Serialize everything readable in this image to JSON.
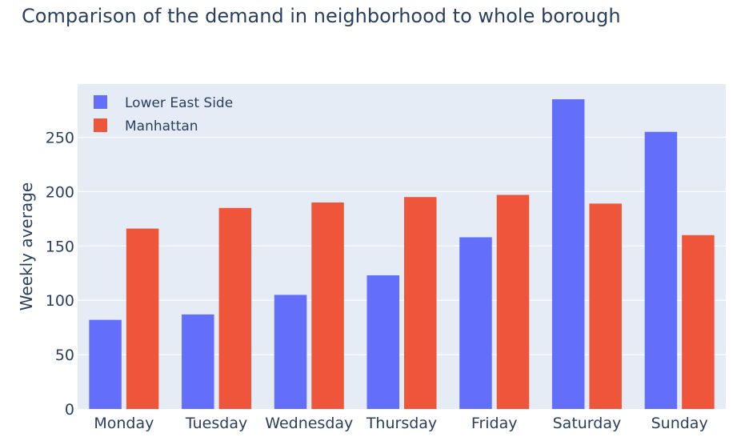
{
  "chart_data": {
    "type": "bar",
    "title": "Comparison of the demand in neighborhood to whole borough",
    "xlabel": "",
    "ylabel": "Weekly average",
    "categories": [
      "Monday",
      "Tuesday",
      "Wednesday",
      "Thursday",
      "Friday",
      "Saturday",
      "Sunday"
    ],
    "series": [
      {
        "name": "Lower East Side",
        "color": "#636efa",
        "values": [
          82,
          87,
          105,
          123,
          158,
          285,
          255
        ]
      },
      {
        "name": "Manhattan",
        "color": "#ef553b",
        "values": [
          166,
          185,
          190,
          195,
          197,
          189,
          160
        ]
      }
    ],
    "ylim": [
      0,
      299
    ],
    "yticks": [
      0,
      50,
      100,
      150,
      200,
      250
    ],
    "grid": true,
    "legend": "top-left",
    "plot_bg": "#e5ecf6"
  }
}
